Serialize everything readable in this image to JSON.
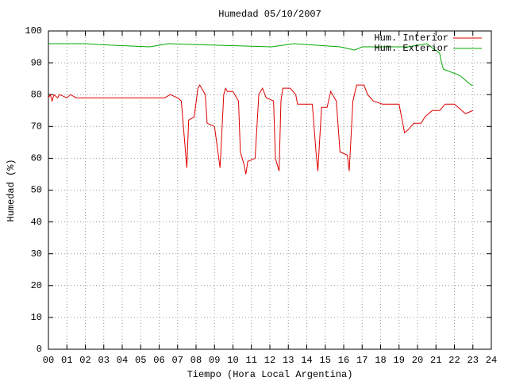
{
  "chart_data": {
    "type": "line",
    "title": "Humedad 05/10/2007",
    "x_label": "Tiempo (Hora Local Argentina)",
    "y_label": "Humedad (%)",
    "xlim": [
      0,
      24
    ],
    "ylim": [
      0,
      100
    ],
    "xticks": [
      {
        "value": 0,
        "label": "00"
      },
      {
        "value": 1,
        "label": "01"
      },
      {
        "value": 2,
        "label": "02"
      },
      {
        "value": 3,
        "label": "03"
      },
      {
        "value": 4,
        "label": "04"
      },
      {
        "value": 5,
        "label": "05"
      },
      {
        "value": 6,
        "label": "06"
      },
      {
        "value": 7,
        "label": "07"
      },
      {
        "value": 8,
        "label": "08"
      },
      {
        "value": 9,
        "label": "09"
      },
      10,
      11,
      12,
      13,
      14,
      15,
      16,
      17,
      18,
      19,
      20,
      21,
      22,
      23,
      24
    ],
    "yticks": [
      0,
      10,
      20,
      30,
      40,
      50,
      60,
      70,
      80,
      90,
      100
    ],
    "grid": true,
    "legend": "upper right",
    "series": [
      {
        "name": "Hum. Interior",
        "color": "#dd0000",
        "x": [
          0,
          0.1,
          0.2,
          0.3,
          0.5,
          0.6,
          1.0,
          1.2,
          1.5,
          2.0,
          6.3,
          6.6,
          7.0,
          7.2,
          7.5,
          7.6,
          7.9,
          8.1,
          8.2,
          8.5,
          8.6,
          9.0,
          9.3,
          9.5,
          9.6,
          9.7,
          10.0,
          10.3,
          10.4,
          10.6,
          10.7,
          10.8,
          11.2,
          11.4,
          11.6,
          11.8,
          12.2,
          12.3,
          12.5,
          12.6,
          12.7,
          13.1,
          13.4,
          13.5,
          14.3,
          14.5,
          14.6,
          14.8,
          15.1,
          15.3,
          15.5,
          15.6,
          15.8,
          16.2,
          16.3,
          16.5,
          16.7,
          17.1,
          17.3,
          17.6,
          18.1,
          19.0,
          19.2,
          19.3,
          19.5,
          19.8,
          20.2,
          20.4,
          20.6,
          20.8,
          21.2,
          21.5,
          22.0,
          22.2,
          22.6,
          23.0
        ],
        "values": [
          79,
          80,
          78,
          80,
          79,
          80,
          79,
          80,
          79,
          79,
          79,
          80,
          79,
          78,
          57,
          72,
          73,
          82,
          83,
          80,
          71,
          70,
          57,
          80,
          82,
          81,
          81,
          78,
          62,
          58,
          55,
          59,
          60,
          80,
          82,
          79,
          78,
          60,
          56,
          78,
          82,
          82,
          80,
          77,
          77,
          62,
          56,
          76,
          76,
          81,
          79,
          78,
          62,
          61,
          56,
          78,
          83,
          83,
          80,
          78,
          77,
          77,
          71,
          68,
          69,
          71,
          71,
          73,
          74,
          75,
          75,
          77,
          77,
          76,
          74,
          75
        ]
      },
      {
        "name": "Hum. Exterior",
        "color": "#00aa00",
        "x": [
          0,
          2.0,
          3.5,
          5.5,
          6.5,
          12.1,
          13.3,
          15.8,
          16.6,
          17.0,
          19.5,
          20.5,
          21.2,
          21.3,
          21.4,
          22.3,
          22.5,
          22.7,
          22.9,
          23.0
        ],
        "values": [
          96,
          96,
          95.5,
          95,
          96,
          95,
          96,
          95,
          94,
          95,
          95,
          96,
          93,
          90,
          88,
          86,
          85,
          84,
          83,
          83
        ]
      }
    ]
  }
}
